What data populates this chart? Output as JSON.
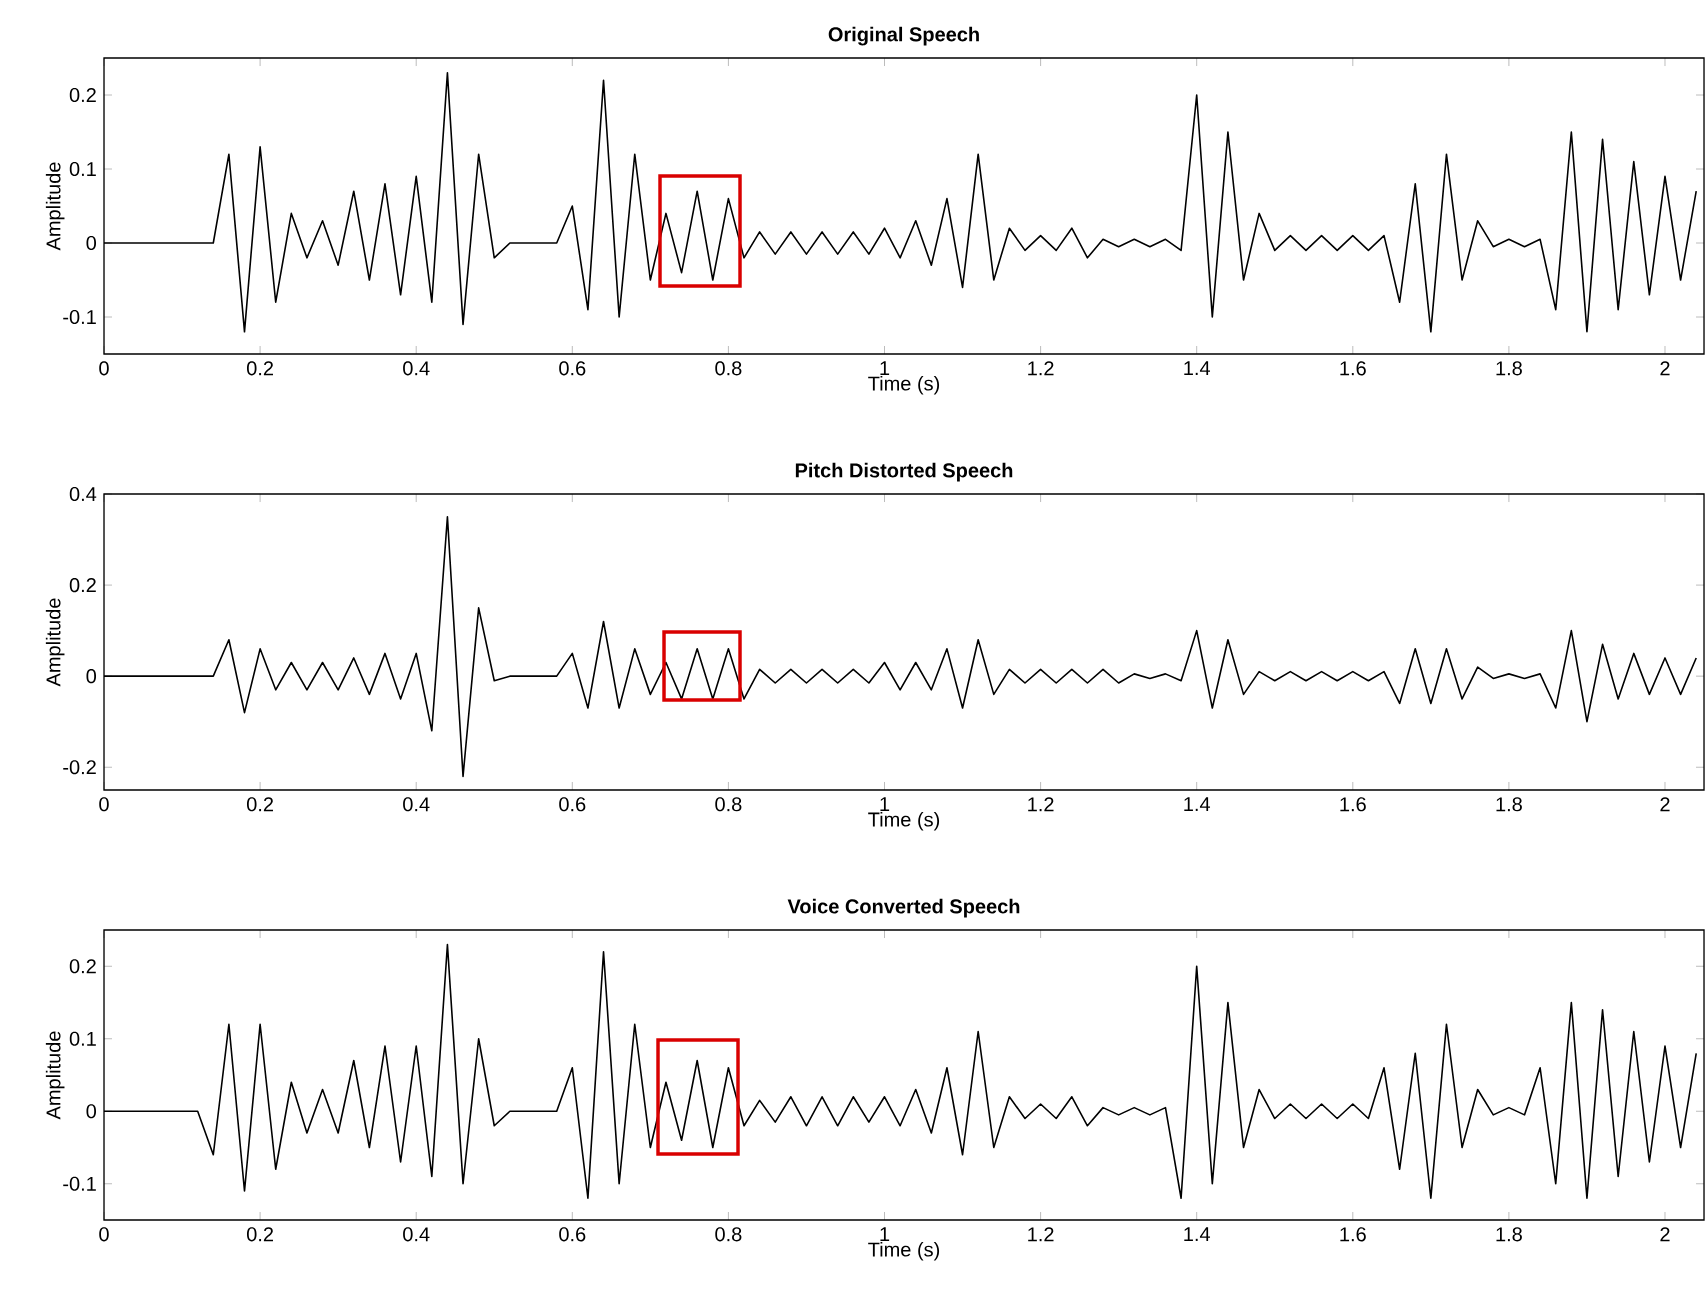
{
  "chart_data": [
    {
      "type": "line",
      "title": "Original Speech",
      "xlabel": "Time (s)",
      "ylabel": "Amplitude",
      "x": [
        0,
        0.02,
        0.04,
        0.06,
        0.08,
        0.1,
        0.12,
        0.14,
        0.16,
        0.18,
        0.2,
        0.22,
        0.24,
        0.26,
        0.28,
        0.3,
        0.32,
        0.34,
        0.36,
        0.38,
        0.4,
        0.42,
        0.44,
        0.46,
        0.48,
        0.5,
        0.52,
        0.54,
        0.56,
        0.58,
        0.6,
        0.62,
        0.64,
        0.66,
        0.68,
        0.7,
        0.72,
        0.74,
        0.76,
        0.78,
        0.8,
        0.82,
        0.84,
        0.86,
        0.88,
        0.9,
        0.92,
        0.94,
        0.96,
        0.98,
        1,
        1.02,
        1.04,
        1.06,
        1.08,
        1.1,
        1.12,
        1.14,
        1.16,
        1.18,
        1.2,
        1.22,
        1.24,
        1.26,
        1.28,
        1.3,
        1.32,
        1.34,
        1.36,
        1.38,
        1.4,
        1.42,
        1.44,
        1.46,
        1.48,
        1.5,
        1.52,
        1.54,
        1.56,
        1.58,
        1.6,
        1.62,
        1.64,
        1.66,
        1.68,
        1.7,
        1.72,
        1.74,
        1.76,
        1.78,
        1.8,
        1.82,
        1.84,
        1.86,
        1.88,
        1.9,
        1.92,
        1.94,
        1.96,
        1.98,
        2,
        2.02,
        2.04
      ],
      "series": [
        {
          "color": "#000000",
          "values": [
            0,
            0,
            0,
            0,
            0,
            0,
            0,
            0,
            0.12,
            -0.12,
            0.13,
            -0.08,
            0.04,
            -0.02,
            0.03,
            -0.03,
            0.07,
            -0.05,
            0.08,
            -0.07,
            0.09,
            -0.08,
            0.23,
            -0.11,
            0.12,
            -0.02,
            0,
            0,
            0,
            0,
            0.05,
            -0.09,
            0.22,
            -0.1,
            0.12,
            -0.05,
            0.04,
            -0.04,
            0.07,
            -0.05,
            0.06,
            -0.02,
            0.015,
            -0.015,
            0.015,
            -0.015,
            0.015,
            -0.015,
            0.015,
            -0.015,
            0.02,
            -0.02,
            0.03,
            -0.03,
            0.06,
            -0.06,
            0.12,
            -0.05,
            0.02,
            -0.01,
            0.01,
            -0.01,
            0.02,
            -0.02,
            0.005,
            -0.005,
            0.005,
            -0.005,
            0.005,
            -0.01,
            0.2,
            -0.1,
            0.15,
            -0.05,
            0.04,
            -0.01,
            0.01,
            -0.01,
            0.01,
            -0.01,
            0.01,
            -0.01,
            0.01,
            -0.08,
            0.08,
            -0.12,
            0.12,
            -0.05,
            0.03,
            -0.005,
            0.005,
            -0.005,
            0.005,
            -0.09,
            0.15,
            -0.12,
            0.14,
            -0.09,
            0.11,
            -0.07,
            0.09,
            -0.05,
            0.07
          ]
        }
      ],
      "xlim": [
        0,
        2.05
      ],
      "ylim": [
        -0.15,
        0.25
      ],
      "xticks": [
        0,
        0.2,
        0.4,
        0.6,
        0.8,
        1,
        1.2,
        1.4,
        1.6,
        1.8,
        2
      ],
      "yticks": [
        -0.1,
        0,
        0.1,
        0.2
      ],
      "grid": false
    },
    {
      "type": "line",
      "title": "Pitch Distorted Speech",
      "xlabel": "Time (s)",
      "ylabel": "Amplitude",
      "x": [
        0,
        0.02,
        0.04,
        0.06,
        0.08,
        0.1,
        0.12,
        0.14,
        0.16,
        0.18,
        0.2,
        0.22,
        0.24,
        0.26,
        0.28,
        0.3,
        0.32,
        0.34,
        0.36,
        0.38,
        0.4,
        0.42,
        0.44,
        0.46,
        0.48,
        0.5,
        0.52,
        0.54,
        0.56,
        0.58,
        0.6,
        0.62,
        0.64,
        0.66,
        0.68,
        0.7,
        0.72,
        0.74,
        0.76,
        0.78,
        0.8,
        0.82,
        0.84,
        0.86,
        0.88,
        0.9,
        0.92,
        0.94,
        0.96,
        0.98,
        1,
        1.02,
        1.04,
        1.06,
        1.08,
        1.1,
        1.12,
        1.14,
        1.16,
        1.18,
        1.2,
        1.22,
        1.24,
        1.26,
        1.28,
        1.3,
        1.32,
        1.34,
        1.36,
        1.38,
        1.4,
        1.42,
        1.44,
        1.46,
        1.48,
        1.5,
        1.52,
        1.54,
        1.56,
        1.58,
        1.6,
        1.62,
        1.64,
        1.66,
        1.68,
        1.7,
        1.72,
        1.74,
        1.76,
        1.78,
        1.8,
        1.82,
        1.84,
        1.86,
        1.88,
        1.9,
        1.92,
        1.94,
        1.96,
        1.98,
        2,
        2.02,
        2.04
      ],
      "series": [
        {
          "color": "#000000",
          "values": [
            0,
            0,
            0,
            0,
            0,
            0,
            0,
            0,
            0.08,
            -0.08,
            0.06,
            -0.03,
            0.03,
            -0.03,
            0.03,
            -0.03,
            0.04,
            -0.04,
            0.05,
            -0.05,
            0.05,
            -0.12,
            0.35,
            -0.22,
            0.15,
            -0.01,
            0,
            0,
            0,
            0,
            0.05,
            -0.07,
            0.12,
            -0.07,
            0.06,
            -0.04,
            0.03,
            -0.05,
            0.06,
            -0.05,
            0.06,
            -0.05,
            0.015,
            -0.015,
            0.015,
            -0.015,
            0.015,
            -0.015,
            0.015,
            -0.015,
            0.03,
            -0.03,
            0.03,
            -0.03,
            0.06,
            -0.07,
            0.08,
            -0.04,
            0.015,
            -0.015,
            0.015,
            -0.015,
            0.015,
            -0.015,
            0.015,
            -0.015,
            0.005,
            -0.005,
            0.005,
            -0.01,
            0.1,
            -0.07,
            0.08,
            -0.04,
            0.01,
            -0.01,
            0.01,
            -0.01,
            0.01,
            -0.01,
            0.01,
            -0.01,
            0.01,
            -0.06,
            0.06,
            -0.06,
            0.06,
            -0.05,
            0.02,
            -0.005,
            0.005,
            -0.005,
            0.005,
            -0.07,
            0.1,
            -0.1,
            0.07,
            -0.05,
            0.05,
            -0.04,
            0.04,
            -0.04,
            0.04
          ]
        }
      ],
      "xlim": [
        0,
        2.05
      ],
      "ylim": [
        -0.25,
        0.4
      ],
      "xticks": [
        0,
        0.2,
        0.4,
        0.6,
        0.8,
        1,
        1.2,
        1.4,
        1.6,
        1.8,
        2
      ],
      "yticks": [
        -0.2,
        0,
        0.2,
        0.4
      ],
      "grid": false
    },
    {
      "type": "line",
      "title": "Voice Converted Speech",
      "xlabel": "Time (s)",
      "ylabel": "Amplitude",
      "x": [
        0,
        0.02,
        0.04,
        0.06,
        0.08,
        0.1,
        0.12,
        0.14,
        0.16,
        0.18,
        0.2,
        0.22,
        0.24,
        0.26,
        0.28,
        0.3,
        0.32,
        0.34,
        0.36,
        0.38,
        0.4,
        0.42,
        0.44,
        0.46,
        0.48,
        0.5,
        0.52,
        0.54,
        0.56,
        0.58,
        0.6,
        0.62,
        0.64,
        0.66,
        0.68,
        0.7,
        0.72,
        0.74,
        0.76,
        0.78,
        0.8,
        0.82,
        0.84,
        0.86,
        0.88,
        0.9,
        0.92,
        0.94,
        0.96,
        0.98,
        1,
        1.02,
        1.04,
        1.06,
        1.08,
        1.1,
        1.12,
        1.14,
        1.16,
        1.18,
        1.2,
        1.22,
        1.24,
        1.26,
        1.28,
        1.3,
        1.32,
        1.34,
        1.36,
        1.38,
        1.4,
        1.42,
        1.44,
        1.46,
        1.48,
        1.5,
        1.52,
        1.54,
        1.56,
        1.58,
        1.6,
        1.62,
        1.64,
        1.66,
        1.68,
        1.7,
        1.72,
        1.74,
        1.76,
        1.78,
        1.8,
        1.82,
        1.84,
        1.86,
        1.88,
        1.9,
        1.92,
        1.94,
        1.96,
        1.98,
        2,
        2.02,
        2.04
      ],
      "series": [
        {
          "color": "#000000",
          "values": [
            0,
            0,
            0,
            0,
            0,
            0,
            0,
            -0.06,
            0.12,
            -0.11,
            0.12,
            -0.08,
            0.04,
            -0.03,
            0.03,
            -0.03,
            0.07,
            -0.05,
            0.09,
            -0.07,
            0.09,
            -0.09,
            0.23,
            -0.1,
            0.1,
            -0.02,
            0,
            0,
            0,
            0,
            0.06,
            -0.12,
            0.22,
            -0.1,
            0.12,
            -0.05,
            0.04,
            -0.04,
            0.07,
            -0.05,
            0.06,
            -0.02,
            0.015,
            -0.015,
            0.02,
            -0.02,
            0.02,
            -0.02,
            0.02,
            -0.015,
            0.02,
            -0.02,
            0.03,
            -0.03,
            0.06,
            -0.06,
            0.11,
            -0.05,
            0.02,
            -0.01,
            0.01,
            -0.01,
            0.02,
            -0.02,
            0.005,
            -0.005,
            0.005,
            -0.005,
            0.005,
            -0.12,
            0.2,
            -0.1,
            0.15,
            -0.05,
            0.03,
            -0.01,
            0.01,
            -0.01,
            0.01,
            -0.01,
            0.01,
            -0.01,
            0.06,
            -0.08,
            0.08,
            -0.12,
            0.12,
            -0.05,
            0.03,
            -0.005,
            0.005,
            -0.005,
            0.06,
            -0.1,
            0.15,
            -0.12,
            0.14,
            -0.09,
            0.11,
            -0.07,
            0.09,
            -0.05,
            0.08
          ]
        }
      ],
      "xlim": [
        0,
        2.05
      ],
      "ylim": [
        -0.15,
        0.25
      ],
      "xticks": [
        0,
        0.2,
        0.4,
        0.6,
        0.8,
        1,
        1.2,
        1.4,
        1.6,
        1.8,
        2
      ],
      "yticks": [
        -0.1,
        0,
        0.1,
        0.2
      ],
      "grid": false
    }
  ]
}
